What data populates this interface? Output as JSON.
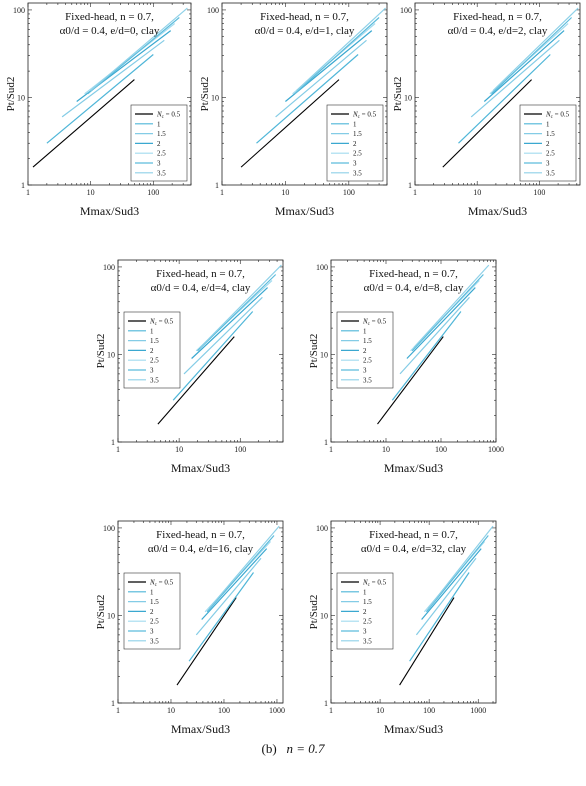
{
  "chart_data": [
    {
      "type": "line",
      "annotation": [
        "Fixed-head,  n = 0.7,",
        "α0/d = 0.4,  e/d=0,  clay"
      ],
      "xlabel": "Mmax/Sud3",
      "ylabel": "Pt/Sud2",
      "xscale": "log",
      "yscale": "log",
      "xlim": [
        1,
        400
      ],
      "ylim": [
        1,
        120
      ],
      "xticks": [
        "1",
        "10",
        "100"
      ],
      "yticks": [
        "1",
        "10",
        "100"
      ],
      "legend_title": "Nc",
      "legend_placement": "lower-right",
      "series": [
        {
          "name": "0.5",
          "x": [
            1.2,
            50
          ],
          "y": [
            1.6,
            16
          ]
        },
        {
          "name": "1",
          "x": [
            2,
            100
          ],
          "y": [
            3,
            31
          ]
        },
        {
          "name": "1.5",
          "x": [
            3.5,
            150
          ],
          "y": [
            6,
            45
          ]
        },
        {
          "name": "2",
          "x": [
            6,
            190
          ],
          "y": [
            9,
            58
          ]
        },
        {
          "name": "2.5",
          "x": [
            8,
            220
          ],
          "y": [
            11,
            70
          ]
        },
        {
          "name": "3",
          "x": [
            9,
            260
          ],
          "y": [
            11,
            82
          ]
        },
        {
          "name": "3.5",
          "x": [
            10,
            350
          ],
          "y": [
            12,
            105
          ]
        }
      ]
    },
    {
      "type": "line",
      "annotation": [
        "Fixed-head,  n = 0.7,",
        "α0/d = 0.4,  e/d=1,  clay"
      ],
      "xlabel": "Mmax/Sud3",
      "ylabel": "Pt/Sud2",
      "xscale": "log",
      "yscale": "log",
      "xlim": [
        1,
        400
      ],
      "ylim": [
        1,
        120
      ],
      "xticks": [
        "1",
        "10",
        "100"
      ],
      "yticks": [
        "1",
        "10",
        "100"
      ],
      "legend_title": "Nc",
      "legend_placement": "lower-right",
      "series": [
        {
          "name": "0.5",
          "x": [
            2,
            70
          ],
          "y": [
            1.6,
            16
          ]
        },
        {
          "name": "1",
          "x": [
            3.5,
            140
          ],
          "y": [
            3,
            31
          ]
        },
        {
          "name": "1.5",
          "x": [
            7,
            190
          ],
          "y": [
            6,
            45
          ]
        },
        {
          "name": "2",
          "x": [
            10,
            230
          ],
          "y": [
            9,
            58
          ]
        },
        {
          "name": "2.5",
          "x": [
            13,
            260
          ],
          "y": [
            11,
            70
          ]
        },
        {
          "name": "3",
          "x": [
            14,
            300
          ],
          "y": [
            11,
            82
          ]
        },
        {
          "name": "3.5",
          "x": [
            15,
            380
          ],
          "y": [
            12,
            105
          ]
        }
      ]
    },
    {
      "type": "line",
      "annotation": [
        "Fixed-head,  n = 0.7,",
        "α0/d = 0.4,  e/d=2,  clay"
      ],
      "xlabel": "Mmax/Sud3",
      "ylabel": "Pt/Sud2",
      "xscale": "log",
      "yscale": "log",
      "xlim": [
        1,
        450
      ],
      "ylim": [
        1,
        120
      ],
      "xticks": [
        "1",
        "10",
        "100"
      ],
      "yticks": [
        "1",
        "10",
        "100"
      ],
      "legend_title": "Nc",
      "legend_placement": "lower-right",
      "series": [
        {
          "name": "0.5",
          "x": [
            2.8,
            75
          ],
          "y": [
            1.6,
            16
          ]
        },
        {
          "name": "1",
          "x": [
            5,
            150
          ],
          "y": [
            3,
            31
          ]
        },
        {
          "name": "1.5",
          "x": [
            8,
            210
          ],
          "y": [
            6,
            45
          ]
        },
        {
          "name": "2",
          "x": [
            13,
            250
          ],
          "y": [
            9,
            58
          ]
        },
        {
          "name": "2.5",
          "x": [
            16,
            290
          ],
          "y": [
            11,
            70
          ]
        },
        {
          "name": "3",
          "x": [
            17,
            330
          ],
          "y": [
            11,
            82
          ]
        },
        {
          "name": "3.5",
          "x": [
            18,
            420
          ],
          "y": [
            12,
            105
          ]
        }
      ]
    },
    {
      "type": "line",
      "annotation": [
        "Fixed-head,  n = 0.7,",
        "α0/d = 0.4,  e/d=4,  clay"
      ],
      "xlabel": "Mmax/Sud3",
      "ylabel": "Pt/Sud2",
      "xscale": "log",
      "yscale": "log",
      "xlim": [
        1,
        500
      ],
      "ylim": [
        1,
        120
      ],
      "xticks": [
        "1",
        "10",
        "100"
      ],
      "yticks": [
        "1",
        "10",
        "100"
      ],
      "legend_title": "Nc",
      "legend_placement": "upper-left",
      "series": [
        {
          "name": "0.5",
          "x": [
            4.5,
            80
          ],
          "y": [
            1.6,
            16
          ]
        },
        {
          "name": "1",
          "x": [
            8,
            160
          ],
          "y": [
            3,
            31
          ]
        },
        {
          "name": "1.5",
          "x": [
            12,
            230
          ],
          "y": [
            6,
            45
          ]
        },
        {
          "name": "2",
          "x": [
            16,
            280
          ],
          "y": [
            9,
            58
          ]
        },
        {
          "name": "2.5",
          "x": [
            19,
            330
          ],
          "y": [
            11,
            70
          ]
        },
        {
          "name": "3",
          "x": [
            20,
            380
          ],
          "y": [
            11,
            82
          ]
        },
        {
          "name": "3.5",
          "x": [
            22,
            470
          ],
          "y": [
            12,
            105
          ]
        }
      ]
    },
    {
      "type": "line",
      "annotation": [
        "Fixed-head,  n = 0.7,",
        "α0/d = 0.4,  e/d=8,  clay"
      ],
      "xlabel": "Mmax/Sud3",
      "ylabel": "Pt/Sud2",
      "xscale": "log",
      "yscale": "log",
      "xlim": [
        1,
        1000
      ],
      "ylim": [
        1,
        120
      ],
      "xticks": [
        "1",
        "10",
        "100",
        "1000"
      ],
      "yticks": [
        "1",
        "10",
        "100"
      ],
      "legend_title": "Nc",
      "legend_placement": "upper-left",
      "series": [
        {
          "name": "0.5",
          "x": [
            7,
            110
          ],
          "y": [
            1.6,
            16
          ]
        },
        {
          "name": "1",
          "x": [
            13,
            230
          ],
          "y": [
            3,
            31
          ]
        },
        {
          "name": "1.5",
          "x": [
            18,
            330
          ],
          "y": [
            6,
            45
          ]
        },
        {
          "name": "2",
          "x": [
            24,
            420
          ],
          "y": [
            9,
            58
          ]
        },
        {
          "name": "2.5",
          "x": [
            28,
            500
          ],
          "y": [
            11,
            70
          ]
        },
        {
          "name": "3",
          "x": [
            30,
            590
          ],
          "y": [
            11,
            82
          ]
        },
        {
          "name": "3.5",
          "x": [
            32,
            740
          ],
          "y": [
            12,
            105
          ]
        }
      ]
    },
    {
      "type": "line",
      "annotation": [
        "Fixed-head,  n = 0.7,",
        "α0/d = 0.4,  e/d=16,  clay"
      ],
      "xlabel": "Mmax/Sud3",
      "ylabel": "Pt/Sud2",
      "xscale": "log",
      "yscale": "log",
      "xlim": [
        1,
        1300
      ],
      "ylim": [
        1,
        120
      ],
      "xticks": [
        "1",
        "10",
        "100",
        "1000"
      ],
      "yticks": [
        "1",
        "10",
        "100"
      ],
      "legend_title": "Nc",
      "legend_placement": "upper-left",
      "series": [
        {
          "name": "0.5",
          "x": [
            13,
            170
          ],
          "y": [
            1.6,
            16
          ]
        },
        {
          "name": "1",
          "x": [
            22,
            360
          ],
          "y": [
            3,
            31
          ]
        },
        {
          "name": "1.5",
          "x": [
            30,
            500
          ],
          "y": [
            6,
            45
          ]
        },
        {
          "name": "2",
          "x": [
            38,
            640
          ],
          "y": [
            9,
            58
          ]
        },
        {
          "name": "2.5",
          "x": [
            44,
            760
          ],
          "y": [
            11,
            70
          ]
        },
        {
          "name": "3",
          "x": [
            48,
            880
          ],
          "y": [
            11,
            82
          ]
        },
        {
          "name": "3.5",
          "x": [
            52,
            1100
          ],
          "y": [
            12,
            105
          ]
        }
      ]
    },
    {
      "type": "line",
      "annotation": [
        "Fixed-head,  n = 0.7,",
        "α0/d = 0.4,  e/d=32,  clay"
      ],
      "xlabel": "Mmax/Sud3",
      "ylabel": "Pt/Sud2",
      "xscale": "log",
      "yscale": "log",
      "xlim": [
        1,
        2300
      ],
      "ylim": [
        1,
        120
      ],
      "xticks": [
        "1",
        "10",
        "100",
        "1000"
      ],
      "yticks": [
        "1",
        "10",
        "100"
      ],
      "legend_title": "Nc",
      "legend_placement": "upper-left",
      "series": [
        {
          "name": "0.5",
          "x": [
            25,
            320
          ],
          "y": [
            1.6,
            16
          ]
        },
        {
          "name": "1",
          "x": [
            40,
            650
          ],
          "y": [
            3,
            31
          ]
        },
        {
          "name": "1.5",
          "x": [
            55,
            900
          ],
          "y": [
            6,
            45
          ]
        },
        {
          "name": "2",
          "x": [
            70,
            1150
          ],
          "y": [
            9,
            58
          ]
        },
        {
          "name": "2.5",
          "x": [
            80,
            1350
          ],
          "y": [
            11,
            70
          ]
        },
        {
          "name": "3",
          "x": [
            88,
            1600
          ],
          "y": [
            11,
            82
          ]
        },
        {
          "name": "3.5",
          "x": [
            95,
            2000
          ],
          "y": [
            12,
            105
          ]
        }
      ]
    }
  ],
  "series_colors": [
    "#000000",
    "#4fb6d8",
    "#84cce6",
    "#3aa8d0",
    "#a3dbef",
    "#5cbcdc",
    "#8fd1e8"
  ],
  "caption": {
    "label": "(b)",
    "text": "n = 0.7"
  }
}
